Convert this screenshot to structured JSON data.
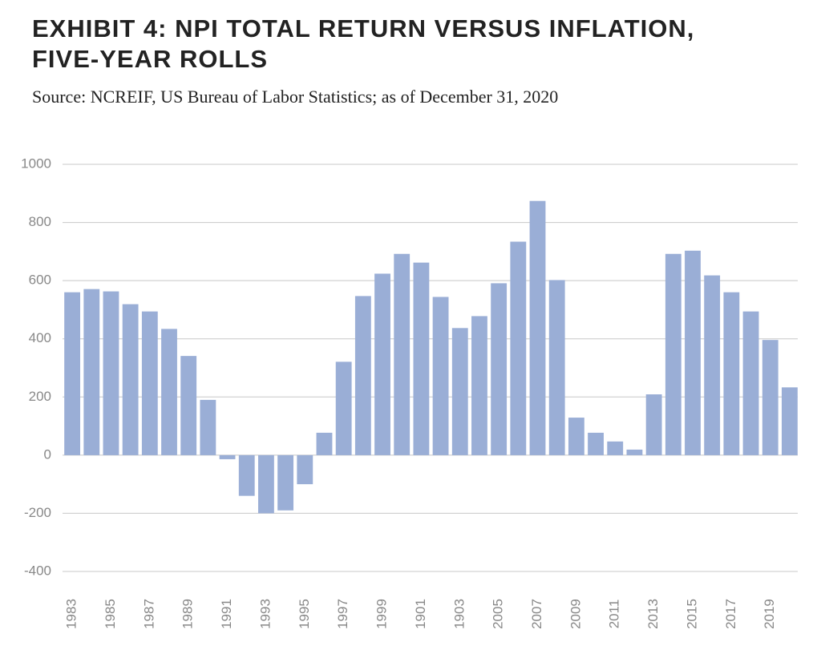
{
  "chart_data": {
    "type": "bar",
    "title": [
      "EXHIBIT 4: NPI TOTAL RETURN VERSUS INFLATION,",
      "FIVE-YEAR ROLLS"
    ],
    "subtitle": "Source: NCREIF, US Bureau of Labor Statistics; as of December 31, 2020",
    "categories": [
      "1983",
      null,
      "1985",
      null,
      "1987",
      null,
      "1989",
      null,
      "1991",
      null,
      "1993",
      null,
      "1995",
      null,
      "1997",
      null,
      "1999",
      null,
      "1901",
      null,
      "1903",
      null,
      "2005",
      null,
      "2007",
      null,
      "2009",
      null,
      "2011",
      null,
      "2013",
      null,
      "2015",
      null,
      "2017",
      null,
      "2019",
      null
    ],
    "values": [
      560,
      571,
      563,
      519,
      494,
      434,
      341,
      190,
      -14,
      -140,
      -200,
      -190,
      -100,
      77,
      321,
      547,
      624,
      692,
      662,
      544,
      437,
      478,
      591,
      734,
      874,
      602,
      129,
      77,
      47,
      19,
      209,
      692,
      703,
      618,
      560,
      494,
      396,
      233
    ],
    "color": "#9aaed6",
    "ylim": [
      -400,
      1000
    ],
    "yticks": [
      -400,
      -200,
      0,
      200,
      400,
      600,
      800,
      1000
    ],
    "grid": true
  }
}
